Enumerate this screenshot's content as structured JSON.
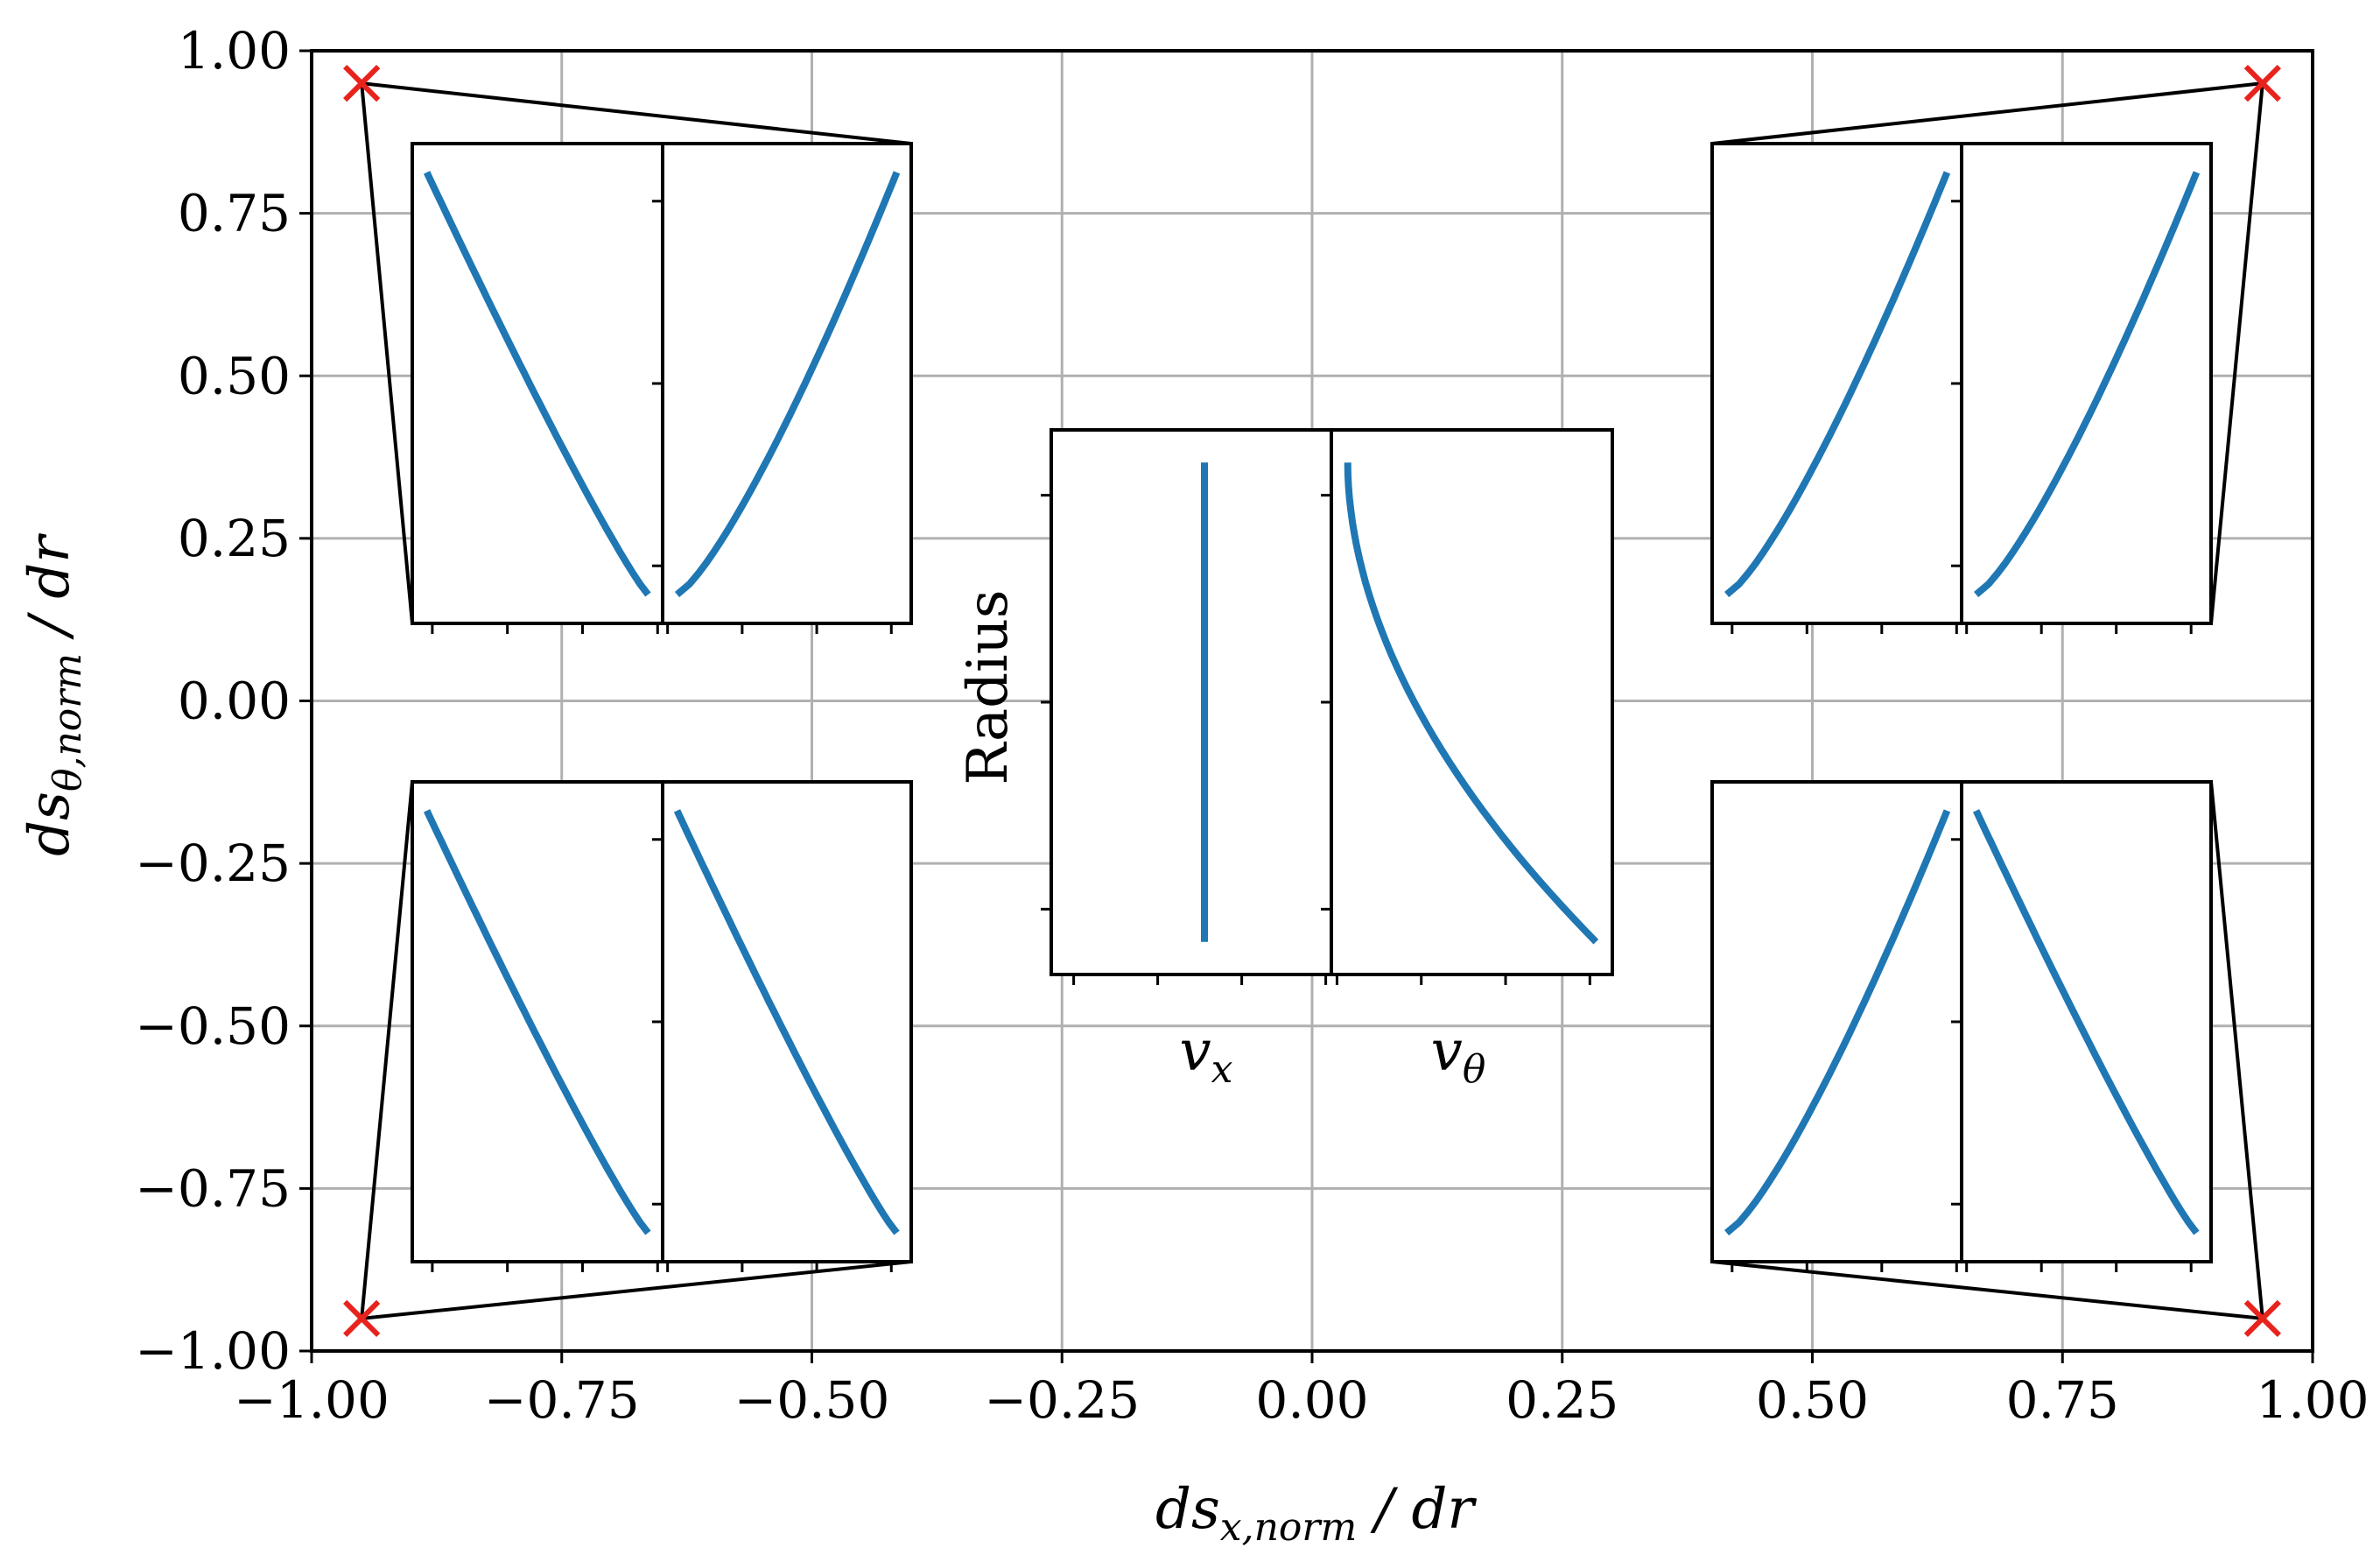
{
  "chart_data": {
    "type": "scatter",
    "xlabel": "ds_{x,norm} / dr",
    "ylabel": "ds_{θ,norm} / dr",
    "xlim": [
      -1.0,
      1.0
    ],
    "ylim": [
      -1.0,
      1.0
    ],
    "grid": true,
    "xticks": [
      "−1.00",
      "−0.75",
      "−0.50",
      "−0.25",
      "0.00",
      "0.25",
      "0.50",
      "0.75",
      "1.00"
    ],
    "yticks": [
      "1.00",
      "0.75",
      "0.50",
      "0.25",
      "0.00",
      "−0.25",
      "−0.50",
      "−0.75",
      "−1.00"
    ],
    "marker_color": "#e8221c",
    "line_color": "#1f77b4",
    "points": [
      {
        "x": -0.95,
        "y": 0.95
      },
      {
        "x": 0.95,
        "y": 0.95
      },
      {
        "x": -0.95,
        "y": -0.95
      },
      {
        "x": 0.95,
        "y": -0.95
      }
    ],
    "insets": [
      {
        "position": "top-left",
        "vx": "decreasing",
        "vtheta": "increasing"
      },
      {
        "position": "top-right",
        "vx": "increasing",
        "vtheta": "increasing"
      },
      {
        "position": "bottom-left",
        "vx": "decreasing",
        "vtheta": "decreasing"
      },
      {
        "position": "bottom-right",
        "vx": "increasing",
        "vtheta": "decreasing"
      },
      {
        "position": "center",
        "vx": "constant",
        "vtheta": "decreasing"
      }
    ],
    "center_inset_labels": {
      "ylabel": "Radius",
      "xlabel_left": "v_x",
      "xlabel_right": "v_θ"
    }
  }
}
